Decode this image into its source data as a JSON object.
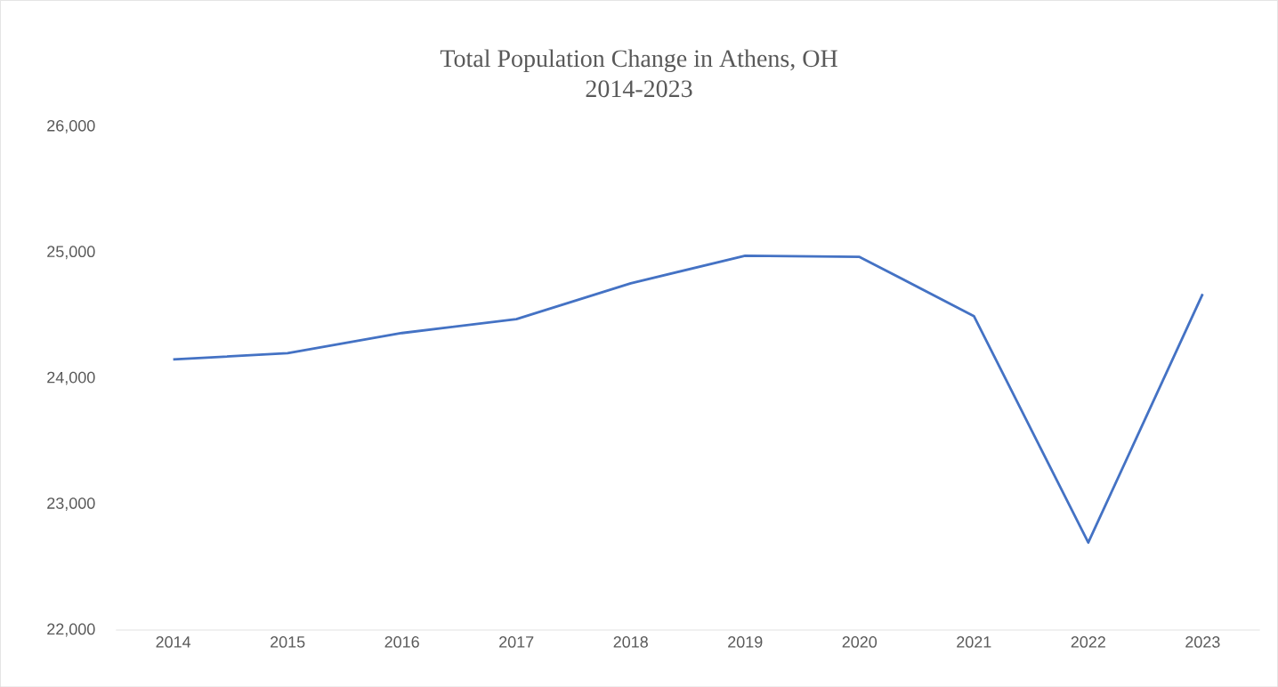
{
  "chart_data": {
    "type": "line",
    "title": "Total Population Change in Athens, OH",
    "subtitle": "2014-2023",
    "categories": [
      "2014",
      "2015",
      "2016",
      "2017",
      "2018",
      "2019",
      "2020",
      "2021",
      "2022",
      "2023"
    ],
    "series": [
      {
        "color": "#4472c4",
        "values": [
          24150,
          24200,
          24360,
          24470,
          24755,
          24975,
          24965,
          24495,
          22695,
          24670
        ]
      }
    ],
    "ylim": [
      22000,
      26000
    ],
    "yticks": [
      {
        "value": 22000,
        "label": "22,000"
      },
      {
        "value": 23000,
        "label": "23,000"
      },
      {
        "value": 24000,
        "label": "24,000"
      },
      {
        "value": 25000,
        "label": "25,000"
      },
      {
        "value": 26000,
        "label": "26,000"
      }
    ],
    "grid": false,
    "legend": false,
    "marker": "none",
    "line_style": "solid"
  }
}
